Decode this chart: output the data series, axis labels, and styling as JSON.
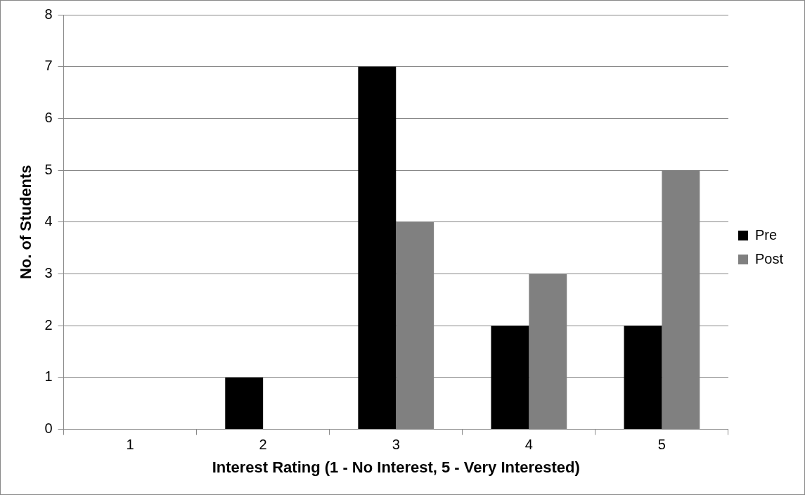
{
  "chart_data": {
    "type": "bar",
    "xlabel": "Interest Rating (1 - No Interest, 5 - Very Interested)",
    "ylabel": "No. of Students",
    "categories": [
      "1",
      "2",
      "3",
      "4",
      "5"
    ],
    "series": [
      {
        "name": "Pre",
        "color": "#000000",
        "values": [
          0,
          1,
          7,
          2,
          2
        ]
      },
      {
        "name": "Post",
        "color": "#808080",
        "values": [
          0,
          0,
          4,
          3,
          5
        ]
      }
    ],
    "ylim": [
      0,
      8
    ],
    "yticks": [
      0,
      1,
      2,
      3,
      4,
      5,
      6,
      7,
      8
    ],
    "grid": "y",
    "legend": "right"
  }
}
